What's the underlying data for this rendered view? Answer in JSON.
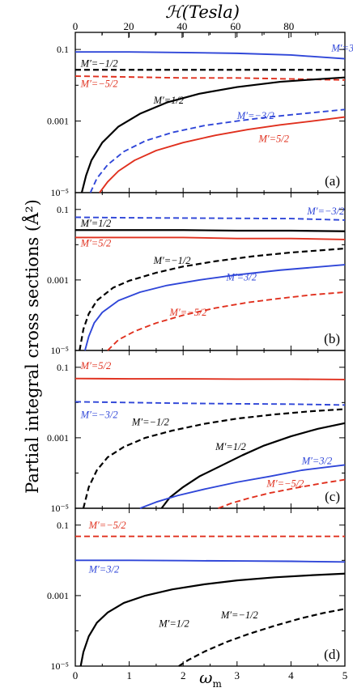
{
  "figure": {
    "top_axis_label": "ℋ(Tesla)",
    "top_axis_ticks": [
      0,
      20,
      40,
      60,
      80
    ],
    "top_axis_max": 101,
    "ylabel": "Partial integral cross sections (Å²)",
    "xlabel": "ω",
    "xlabel_sub": "m",
    "y_tick_labels": {
      "0.1": "0.1",
      "0.001": "0.001",
      "1e-5": "10⁻⁵"
    },
    "x_tick_labels": [
      "0",
      "1",
      "2",
      "3",
      "4",
      "5"
    ]
  },
  "colors": {
    "black": "#000000",
    "blue": "#2f46d8",
    "red": "#e0301e"
  },
  "chart_data": [
    {
      "type": "line",
      "panel": "(a)",
      "yscale": "log",
      "xlim": [
        0,
        5
      ],
      "ylim": [
        1e-05,
        0.3
      ],
      "series": [
        {
          "name": "M′=3/2",
          "color": "blue",
          "dash": false,
          "x": [
            0,
            1,
            2,
            3,
            4,
            5
          ],
          "y": [
            0.085,
            0.085,
            0.082,
            0.078,
            0.07,
            0.055
          ]
        },
        {
          "name": "M′=−1/2",
          "color": "black",
          "dash": true,
          "x": [
            0,
            1,
            2,
            3,
            4,
            5
          ],
          "y": [
            0.027,
            0.027,
            0.027,
            0.027,
            0.027,
            0.027
          ]
        },
        {
          "name": "M′=−5/2",
          "color": "red",
          "dash": true,
          "x": [
            0,
            1,
            2,
            3,
            4,
            5
          ],
          "y": [
            0.018,
            0.017,
            0.016,
            0.016,
            0.015,
            0.014
          ]
        },
        {
          "name": "M′=1/2",
          "color": "black",
          "dash": false,
          "x": [
            0.12,
            0.2,
            0.3,
            0.5,
            0.8,
            1.2,
            1.7,
            2.3,
            3,
            3.8,
            4.5,
            5
          ],
          "y": [
            1e-05,
            3e-05,
            8e-05,
            0.00025,
            0.0007,
            0.0016,
            0.0033,
            0.0058,
            0.0089,
            0.0125,
            0.0148,
            0.0165
          ]
        },
        {
          "name": "M′=−3/2",
          "color": "blue",
          "dash": true,
          "x": [
            0.28,
            0.4,
            0.6,
            0.9,
            1.3,
            1.8,
            2.4,
            3,
            3.6,
            4.2,
            5
          ],
          "y": [
            1e-05,
            2.5e-05,
            6e-05,
            0.00014,
            0.00028,
            0.00048,
            0.00075,
            0.001,
            0.0013,
            0.0016,
            0.0021
          ]
        },
        {
          "name": "M′=5/2",
          "color": "red",
          "dash": false,
          "x": [
            0.45,
            0.6,
            0.8,
            1.1,
            1.5,
            2,
            2.6,
            3.2,
            3.8,
            4.4,
            5
          ],
          "y": [
            1e-05,
            2e-05,
            4e-05,
            8e-05,
            0.00015,
            0.00025,
            0.0004,
            0.00058,
            0.00078,
            0.001,
            0.0013
          ]
        }
      ],
      "labels": [
        {
          "text": "M′=3/2",
          "color": "blue",
          "x": 4.75,
          "y": 0.11
        },
        {
          "text": "M′=−1/2",
          "color": "black",
          "x": 0.1,
          "y": 0.04
        },
        {
          "text": "M′=−5/2",
          "color": "red",
          "x": 0.1,
          "y": 0.011
        },
        {
          "text": "M′=1/2",
          "color": "black",
          "x": 1.45,
          "y": 0.0038
        },
        {
          "text": "M′=−3/2",
          "color": "blue",
          "x": 3.0,
          "y": 0.0014
        },
        {
          "text": "M′=5/2",
          "color": "red",
          "x": 3.4,
          "y": 0.00032
        }
      ]
    },
    {
      "type": "line",
      "panel": "(b)",
      "yscale": "log",
      "xlim": [
        0,
        5
      ],
      "ylim": [
        1e-05,
        0.3
      ],
      "series": [
        {
          "name": "M′=−3/2",
          "color": "blue",
          "dash": true,
          "x": [
            0,
            1,
            2,
            3,
            4,
            5
          ],
          "y": [
            0.06,
            0.058,
            0.057,
            0.056,
            0.055,
            0.05
          ]
        },
        {
          "name": "M′=1/2",
          "color": "black",
          "dash": false,
          "x": [
            0,
            1,
            2,
            3,
            4,
            5
          ],
          "y": [
            0.026,
            0.026,
            0.026,
            0.025,
            0.025,
            0.024
          ]
        },
        {
          "name": "M′=5/2",
          "color": "red",
          "dash": false,
          "x": [
            0,
            1,
            2,
            3,
            4,
            5
          ],
          "y": [
            0.016,
            0.016,
            0.016,
            0.015,
            0.015,
            0.014
          ]
        },
        {
          "name": "M′=−1/2",
          "color": "black",
          "dash": true,
          "x": [
            0.08,
            0.15,
            0.25,
            0.4,
            0.7,
            1,
            1.5,
            2,
            2.6,
            3.3,
            4,
            5
          ],
          "y": [
            1e-05,
            4e-05,
            0.00011,
            0.00026,
            0.0006,
            0.00095,
            0.0016,
            0.0024,
            0.0034,
            0.0047,
            0.006,
            0.0078
          ]
        },
        {
          "name": "M′=3/2",
          "color": "blue",
          "dash": false,
          "x": [
            0.18,
            0.25,
            0.35,
            0.5,
            0.8,
            1.2,
            1.7,
            2.3,
            3,
            3.8,
            5
          ],
          "y": [
            1e-05,
            2.5e-05,
            6e-05,
            0.00012,
            0.00026,
            0.00045,
            0.0007,
            0.001,
            0.0014,
            0.0019,
            0.0027
          ]
        },
        {
          "name": "M′=−5/2",
          "color": "red",
          "dash": true,
          "x": [
            0.6,
            0.8,
            1.1,
            1.5,
            2,
            2.6,
            3.2,
            3.8,
            4.4,
            5
          ],
          "y": [
            1e-05,
            2e-05,
            3.5e-05,
            6e-05,
            0.0001,
            0.00016,
            0.00023,
            0.0003,
            0.00038,
            0.00045
          ]
        }
      ],
      "labels": [
        {
          "text": "M′=−3/2",
          "color": "blue",
          "x": 4.3,
          "y": 0.09
        },
        {
          "text": "M′=1/2",
          "color": "black",
          "x": 0.1,
          "y": 0.04
        },
        {
          "text": "M′=5/2",
          "color": "red",
          "x": 0.1,
          "y": 0.011
        },
        {
          "text": "M′=−1/2",
          "color": "black",
          "x": 1.45,
          "y": 0.0035
        },
        {
          "text": "M′=3/2",
          "color": "blue",
          "x": 2.8,
          "y": 0.0012
        },
        {
          "text": "M′=−5/2",
          "color": "red",
          "x": 1.75,
          "y": 0.00012
        }
      ]
    },
    {
      "type": "line",
      "panel": "(c)",
      "yscale": "log",
      "xlim": [
        0,
        5
      ],
      "ylim": [
        1e-05,
        0.3
      ],
      "series": [
        {
          "name": "M′=5/2",
          "color": "red",
          "dash": false,
          "x": [
            0,
            1,
            2,
            3,
            4,
            5
          ],
          "y": [
            0.048,
            0.047,
            0.047,
            0.046,
            0.046,
            0.045
          ]
        },
        {
          "name": "M′=−3/2",
          "color": "blue",
          "dash": true,
          "x": [
            0,
            1,
            2,
            3,
            4,
            5
          ],
          "y": [
            0.0105,
            0.01,
            0.0095,
            0.0092,
            0.009,
            0.0085
          ]
        },
        {
          "name": "M′=−1/2",
          "color": "black",
          "dash": true,
          "x": [
            0.15,
            0.25,
            0.4,
            0.6,
            0.9,
            1.3,
            1.8,
            2.4,
            3,
            3.7,
            4.4,
            5
          ],
          "y": [
            1e-05,
            4e-05,
            0.00012,
            0.00028,
            0.00055,
            0.001,
            0.0016,
            0.0025,
            0.0035,
            0.0046,
            0.0057,
            0.0065
          ]
        },
        {
          "name": "M′=1/2",
          "color": "black",
          "dash": false,
          "x": [
            1.6,
            1.75,
            2,
            2.3,
            2.7,
            3.1,
            3.5,
            4,
            4.5,
            5
          ],
          "y": [
            1e-05,
            2e-05,
            4e-05,
            8e-05,
            0.00016,
            0.00032,
            0.0006,
            0.0011,
            0.0018,
            0.0026
          ]
        },
        {
          "name": "M′=3/2",
          "color": "blue",
          "dash": false,
          "x": [
            1.2,
            1.5,
            1.9,
            2.4,
            3,
            3.6,
            4.2,
            5
          ],
          "y": [
            1e-05,
            1.5e-05,
            2.3e-05,
            3.5e-05,
            5.5e-05,
            8e-05,
            0.00012,
            0.00017
          ]
        },
        {
          "name": "M′=−5/2",
          "color": "red",
          "dash": true,
          "x": [
            2.65,
            2.9,
            3.2,
            3.6,
            4.1,
            4.6,
            5
          ],
          "y": [
            1e-05,
            1.4e-05,
            1.9e-05,
            2.7e-05,
            3.8e-05,
            5.2e-05,
            6.5e-05
          ]
        }
      ],
      "labels": [
        {
          "text": "M′=5/2",
          "color": "red",
          "x": 0.1,
          "y": 0.11
        },
        {
          "text": "M′=−3/2",
          "color": "blue",
          "x": 0.1,
          "y": 0.0045
        },
        {
          "text": "M′=−1/2",
          "color": "black",
          "x": 1.05,
          "y": 0.0028
        },
        {
          "text": "M′=1/2",
          "color": "black",
          "x": 2.6,
          "y": 0.00055
        },
        {
          "text": "M′=3/2",
          "color": "blue",
          "x": 4.2,
          "y": 0.00022
        },
        {
          "text": "M′=−5/2",
          "color": "red",
          "x": 3.55,
          "y": 5e-05
        }
      ]
    },
    {
      "type": "line",
      "panel": "(d)",
      "yscale": "log",
      "xlim": [
        0,
        5
      ],
      "ylim": [
        1e-05,
        0.3
      ],
      "series": [
        {
          "name": "M′=−5/2",
          "color": "red",
          "dash": true,
          "x": [
            0,
            1,
            2,
            3,
            4,
            5
          ],
          "y": [
            0.048,
            0.048,
            0.048,
            0.048,
            0.048,
            0.048
          ]
        },
        {
          "name": "M′=3/2",
          "color": "blue",
          "dash": false,
          "x": [
            0,
            1,
            2,
            3,
            4,
            5
          ],
          "y": [
            0.01,
            0.01,
            0.0098,
            0.0096,
            0.0094,
            0.009
          ]
        },
        {
          "name": "M′=1/2",
          "color": "black",
          "dash": false,
          "x": [
            0.1,
            0.15,
            0.25,
            0.4,
            0.6,
            0.9,
            1.3,
            1.8,
            2.4,
            3,
            3.7,
            4.4,
            5
          ],
          "y": [
            1e-05,
            2.5e-05,
            7e-05,
            0.00017,
            0.00033,
            0.00062,
            0.001,
            0.0015,
            0.0021,
            0.0027,
            0.0033,
            0.0038,
            0.0042
          ]
        },
        {
          "name": "M′=−1/2",
          "color": "black",
          "dash": true,
          "x": [
            1.92,
            2.1,
            2.4,
            2.8,
            3.2,
            3.7,
            4.2,
            4.6,
            5
          ],
          "y": [
            1e-05,
            1.5e-05,
            2.6e-05,
            4.8e-05,
            8e-05,
            0.00014,
            0.00023,
            0.00032,
            0.00042
          ]
        }
      ],
      "labels": [
        {
          "text": "M′=−5/2",
          "color": "red",
          "x": 0.25,
          "y": 0.1
        },
        {
          "text": "M′=3/2",
          "color": "blue",
          "x": 0.25,
          "y": 0.0055
        },
        {
          "text": "M′=1/2",
          "color": "black",
          "x": 1.55,
          "y": 0.00016
        },
        {
          "text": "M′=−1/2",
          "color": "black",
          "x": 2.7,
          "y": 0.00028
        }
      ]
    }
  ]
}
